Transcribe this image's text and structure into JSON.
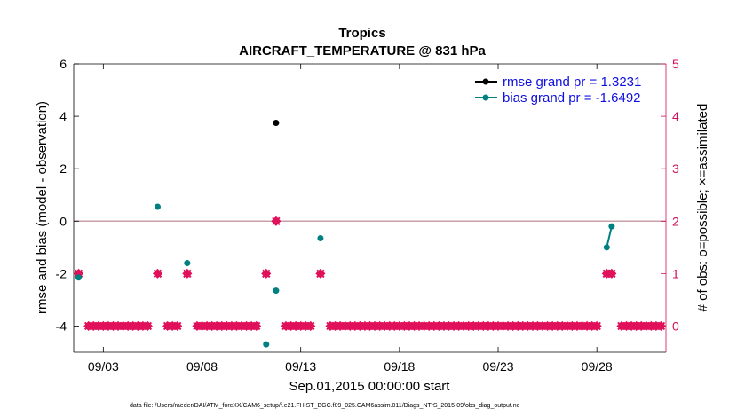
{
  "chart_data": {
    "type": "scatter",
    "title": "Tropics",
    "subtitle": "AIRCRAFT_TEMPERATURE @ 831 hPa",
    "xlabel": "Sep.01,2015 00:00:00 start",
    "ylabel": "rmse and bias (model - observation)",
    "y2label": "# of obs: o=possible; ×=assimilated",
    "footnote": "data file: /Users/raeder/DAI/ATM_forcXX/CAM6_setup/f.e21.FHIST_BGC.f09_025.CAM6assim.011/Diags_NTrS_2015-09/obs_diag_output.nc",
    "xlim": [
      1.5,
      31.5
    ],
    "ylim": [
      -5,
      6
    ],
    "y2lim": [
      -0.5,
      5
    ],
    "x_ticks": [
      3,
      8,
      13,
      18,
      23,
      28
    ],
    "x_tick_labels": [
      "09/03",
      "09/08",
      "09/13",
      "09/18",
      "09/23",
      "09/28"
    ],
    "y_ticks": [
      -4,
      -2,
      0,
      2,
      4,
      6
    ],
    "y_tick_labels": [
      "-4",
      "-2",
      "0",
      "2",
      "4",
      "6"
    ],
    "y2_ticks": [
      0,
      1,
      2,
      3,
      4,
      5
    ],
    "y2_tick_labels": [
      "0",
      "1",
      "2",
      "3",
      "4",
      "5"
    ],
    "zero_line": 0,
    "legend_position": "top-right",
    "colors": {
      "rmse": "#000000",
      "bias": "#008080",
      "obs": "#e0105a",
      "right_axis": "#d0105a",
      "legend_text": "#1010e0",
      "zero_line": "#c8a0a8"
    },
    "series": [
      {
        "name": "rmse grand pr = 1.3231",
        "axis": "left",
        "points": [
          [
            11.75,
            3.75
          ]
        ]
      },
      {
        "name": "bias grand pr = -1.6492",
        "axis": "left",
        "points": [
          [
            1.75,
            -2.15
          ],
          [
            5.75,
            0.55
          ],
          [
            7.25,
            -1.6
          ],
          [
            11.25,
            -4.7
          ],
          [
            11.75,
            -2.65
          ],
          [
            14.0,
            -0.65
          ]
        ],
        "line": [
          [
            28.5,
            -1.0
          ],
          [
            28.75,
            -0.2
          ]
        ]
      },
      {
        "name": "obs possible",
        "axis": "right",
        "marker": "o",
        "points": [
          [
            1.75,
            1
          ],
          [
            5.75,
            1
          ],
          [
            7.25,
            1
          ],
          [
            11.25,
            1
          ],
          [
            11.75,
            2
          ],
          [
            14.0,
            1
          ],
          [
            28.5,
            1
          ],
          [
            28.75,
            1
          ]
        ]
      },
      {
        "name": "obs assimilated",
        "axis": "right",
        "marker": "x",
        "points": [
          [
            1.75,
            1
          ],
          [
            5.75,
            1
          ],
          [
            7.25,
            1
          ],
          [
            11.25,
            1
          ],
          [
            11.75,
            2
          ],
          [
            14.0,
            1
          ],
          [
            28.5,
            1
          ],
          [
            28.75,
            1
          ]
        ]
      }
    ],
    "zero_count_days": [
      1.5,
      31.5
    ]
  }
}
